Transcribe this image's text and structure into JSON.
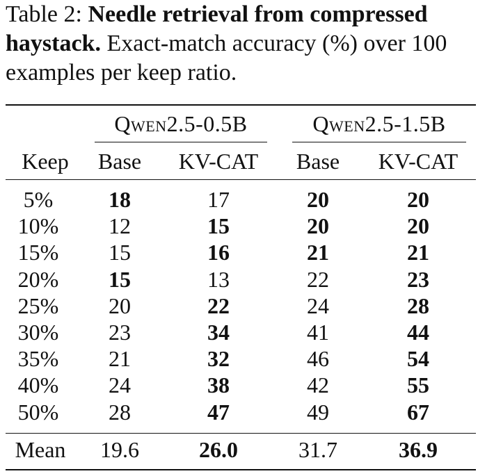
{
  "caption": {
    "label": "Table 2:",
    "title": "Needle retrieval from compressed haystack.",
    "text": "Exact-match accuracy (%) over 100 examples per keep ratio."
  },
  "table": {
    "groups": [
      "Qwen2.5-0.5B",
      "Qwen2.5-1.5B"
    ],
    "columns": [
      "Keep",
      "Base",
      "KV-CAT",
      "Base",
      "KV-CAT"
    ],
    "rows": [
      {
        "keep": "5%",
        "v": [
          "18",
          "17",
          "20",
          "20"
        ],
        "bold": [
          true,
          false,
          true,
          true
        ]
      },
      {
        "keep": "10%",
        "v": [
          "12",
          "15",
          "20",
          "20"
        ],
        "bold": [
          false,
          true,
          true,
          true
        ]
      },
      {
        "keep": "15%",
        "v": [
          "15",
          "16",
          "21",
          "21"
        ],
        "bold": [
          false,
          true,
          true,
          true
        ]
      },
      {
        "keep": "20%",
        "v": [
          "15",
          "13",
          "22",
          "23"
        ],
        "bold": [
          true,
          false,
          false,
          true
        ]
      },
      {
        "keep": "25%",
        "v": [
          "20",
          "22",
          "24",
          "28"
        ],
        "bold": [
          false,
          true,
          false,
          true
        ]
      },
      {
        "keep": "30%",
        "v": [
          "23",
          "34",
          "41",
          "44"
        ],
        "bold": [
          false,
          true,
          false,
          true
        ]
      },
      {
        "keep": "35%",
        "v": [
          "21",
          "32",
          "46",
          "54"
        ],
        "bold": [
          false,
          true,
          false,
          true
        ]
      },
      {
        "keep": "40%",
        "v": [
          "24",
          "38",
          "42",
          "55"
        ],
        "bold": [
          false,
          true,
          false,
          true
        ]
      },
      {
        "keep": "50%",
        "v": [
          "28",
          "47",
          "49",
          "67"
        ],
        "bold": [
          false,
          true,
          false,
          true
        ]
      }
    ],
    "mean": {
      "label": "Mean",
      "v": [
        "19.6",
        "26.0",
        "31.7",
        "36.9"
      ],
      "bold": [
        false,
        true,
        false,
        true
      ]
    }
  }
}
